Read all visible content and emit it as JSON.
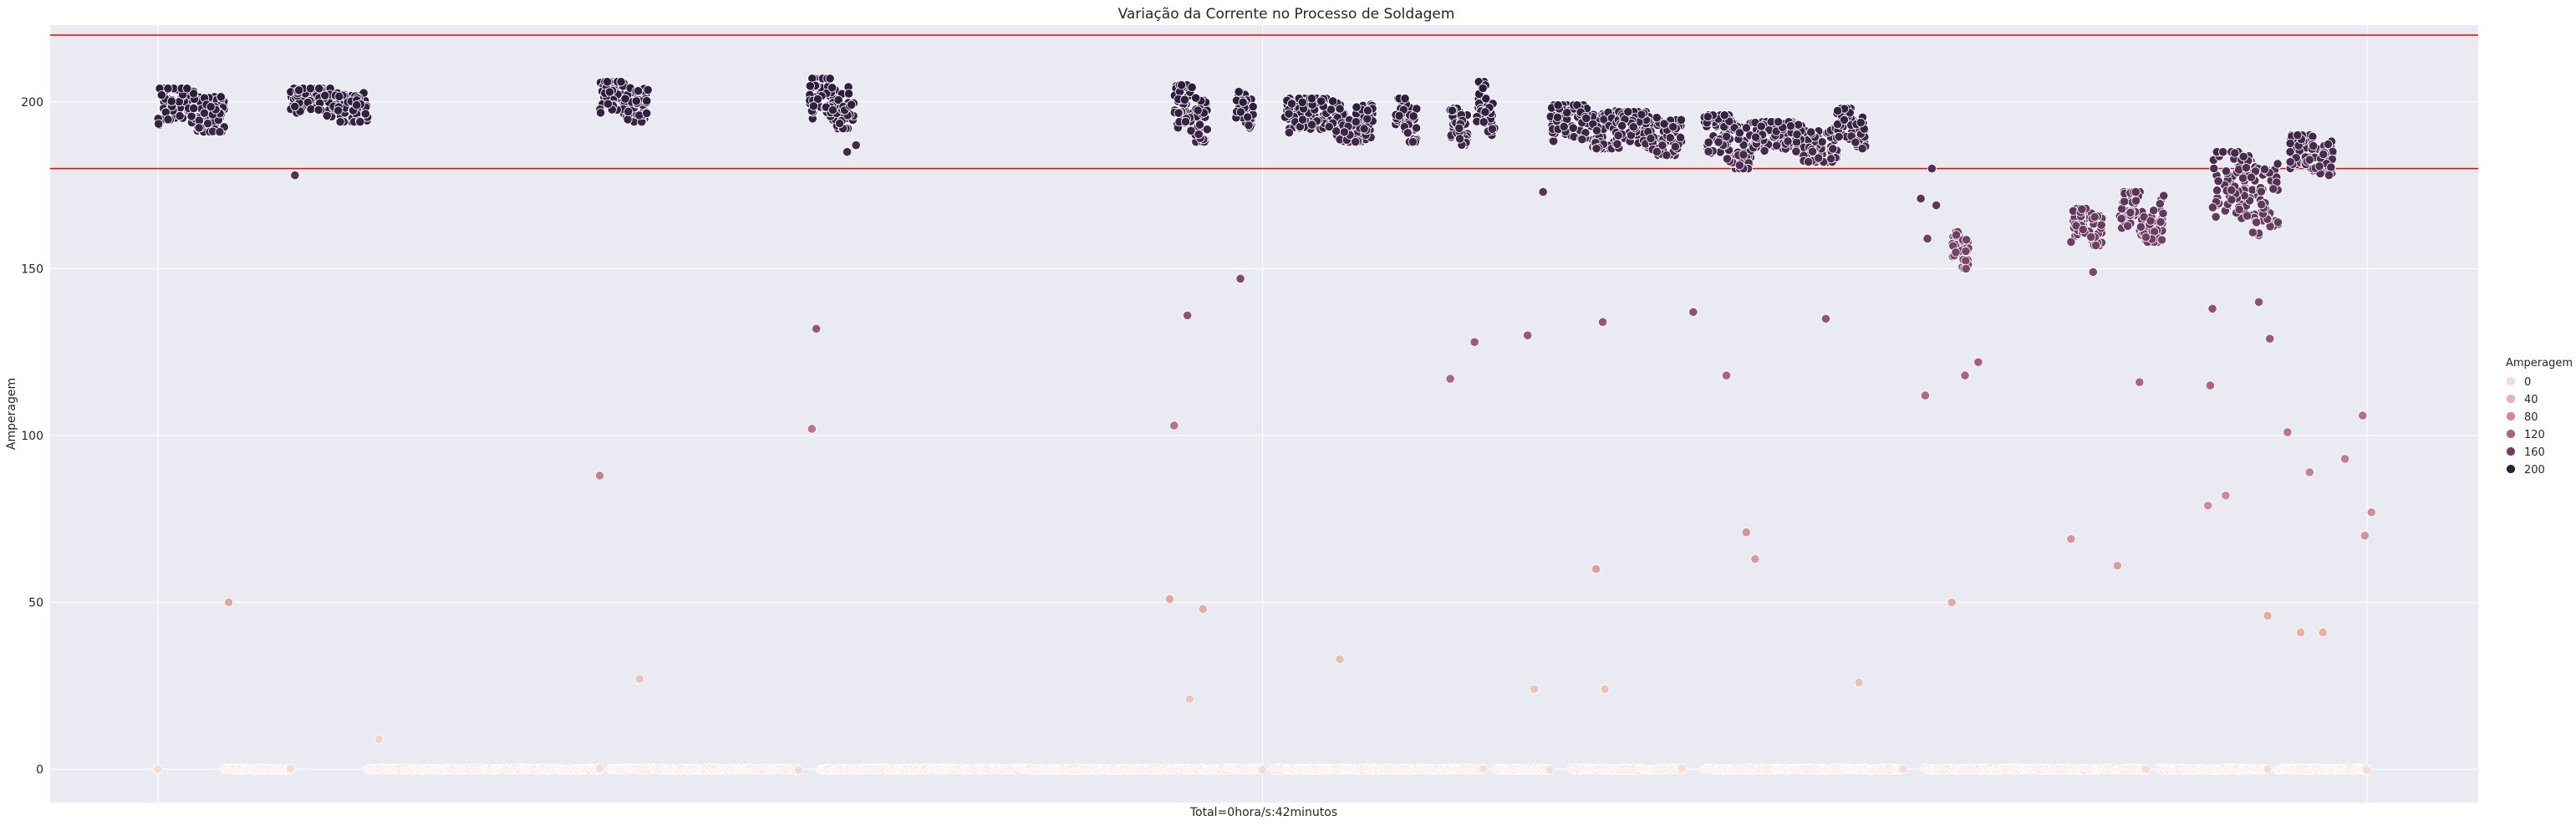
{
  "chart_data": {
    "type": "scatter",
    "title": "Variação da Corrente no Processo de Soldagem",
    "xlabel": "Total=0hora/s:42minutos",
    "ylabel": "Amperagem",
    "x_range": [
      0,
      1000
    ],
    "ylim": [
      -10,
      223
    ],
    "y_ticks": [
      0,
      50,
      100,
      150,
      200
    ],
    "grid": true,
    "legend_position": "right",
    "legend": {
      "title": "Amperagem",
      "entries": [
        {
          "label": "0",
          "value": 0
        },
        {
          "label": "40",
          "value": 40
        },
        {
          "label": "80",
          "value": 80
        },
        {
          "label": "120",
          "value": 120
        },
        {
          "label": "160",
          "value": 160
        },
        {
          "label": "200",
          "value": 200
        }
      ]
    },
    "reference_lines": [
      {
        "y": 220,
        "color": "#ff0000"
      },
      {
        "y": 180,
        "color": "#ff0000"
      }
    ],
    "zero_runs": [
      [
        0,
        0
      ],
      [
        30,
        60
      ],
      [
        95,
        200
      ],
      [
        205,
        290
      ],
      [
        300,
        500
      ],
      [
        505,
        600
      ],
      [
        606,
        630
      ],
      [
        640,
        690
      ],
      [
        700,
        790
      ],
      [
        800,
        900
      ],
      [
        906,
        955
      ],
      [
        960,
        1000
      ]
    ],
    "clusters": [
      {
        "x": [
          0,
          30
        ],
        "y": [
          191,
          204
        ]
      },
      {
        "x": [
          60,
          95
        ],
        "y": [
          194,
          204
        ]
      },
      {
        "x": [
          200,
          222
        ],
        "y": [
          194,
          206
        ]
      },
      {
        "x": [
          295,
          315
        ],
        "y": [
          192,
          207
        ]
      },
      {
        "x": [
          460,
          475
        ],
        "y": [
          188,
          205
        ]
      },
      {
        "x": [
          488,
          496
        ],
        "y": [
          192,
          203
        ]
      },
      {
        "x": [
          510,
          550
        ],
        "y": [
          188,
          201
        ]
      },
      {
        "x": [
          560,
          570
        ],
        "y": [
          188,
          201
        ]
      },
      {
        "x": [
          585,
          593
        ],
        "y": [
          187,
          198
        ]
      },
      {
        "x": [
          597,
          605
        ],
        "y": [
          190,
          206
        ]
      },
      {
        "x": [
          630,
          660
        ],
        "y": [
          186,
          199
        ]
      },
      {
        "x": [
          660,
          690
        ],
        "y": [
          184,
          197
        ]
      },
      {
        "x": [
          700,
          722
        ],
        "y": [
          180,
          196
        ]
      },
      {
        "x": [
          722,
          760
        ],
        "y": [
          182,
          194
        ]
      },
      {
        "x": [
          760,
          773
        ],
        "y": [
          186,
          198
        ]
      },
      {
        "x": [
          812,
          820
        ],
        "y": [
          150,
          161
        ]
      },
      {
        "x": [
          867,
          880
        ],
        "y": [
          157,
          168
        ]
      },
      {
        "x": [
          888,
          908
        ],
        "y": [
          158,
          173
        ]
      },
      {
        "x": [
          930,
          960
        ],
        "y": [
          160,
          185
        ]
      },
      {
        "x": [
          965,
          985
        ],
        "y": [
          178,
          190
        ]
      }
    ],
    "points": [
      {
        "x": 0,
        "y": 0
      },
      {
        "x": 32,
        "y": 50
      },
      {
        "x": 62,
        "y": 178
      },
      {
        "x": 100,
        "y": 9
      },
      {
        "x": 200,
        "y": 88
      },
      {
        "x": 218,
        "y": 27
      },
      {
        "x": 296,
        "y": 102
      },
      {
        "x": 298,
        "y": 132
      },
      {
        "x": 312,
        "y": 185
      },
      {
        "x": 316,
        "y": 187
      },
      {
        "x": 460,
        "y": 103
      },
      {
        "x": 458,
        "y": 51
      },
      {
        "x": 466,
        "y": 136
      },
      {
        "x": 467,
        "y": 21
      },
      {
        "x": 473,
        "y": 48
      },
      {
        "x": 490,
        "y": 147
      },
      {
        "x": 535,
        "y": 33
      },
      {
        "x": 585,
        "y": 117
      },
      {
        "x": 596,
        "y": 128
      },
      {
        "x": 620,
        "y": 130
      },
      {
        "x": 623,
        "y": 24
      },
      {
        "x": 627,
        "y": 173
      },
      {
        "x": 651,
        "y": 60
      },
      {
        "x": 654,
        "y": 134
      },
      {
        "x": 655,
        "y": 24
      },
      {
        "x": 695,
        "y": 137
      },
      {
        "x": 710,
        "y": 118
      },
      {
        "x": 716,
        "y": 181
      },
      {
        "x": 719,
        "y": 71
      },
      {
        "x": 723,
        "y": 63
      },
      {
        "x": 755,
        "y": 135
      },
      {
        "x": 770,
        "y": 26
      },
      {
        "x": 798,
        "y": 171
      },
      {
        "x": 800,
        "y": 112
      },
      {
        "x": 801,
        "y": 159
      },
      {
        "x": 803,
        "y": 180
      },
      {
        "x": 805,
        "y": 169
      },
      {
        "x": 812,
        "y": 50
      },
      {
        "x": 818,
        "y": 118
      },
      {
        "x": 824,
        "y": 122
      },
      {
        "x": 866,
        "y": 158
      },
      {
        "x": 866,
        "y": 69
      },
      {
        "x": 876,
        "y": 149
      },
      {
        "x": 887,
        "y": 61
      },
      {
        "x": 897,
        "y": 116
      },
      {
        "x": 928,
        "y": 79
      },
      {
        "x": 929,
        "y": 115
      },
      {
        "x": 930,
        "y": 138
      },
      {
        "x": 936,
        "y": 82
      },
      {
        "x": 951,
        "y": 140
      },
      {
        "x": 955,
        "y": 46
      },
      {
        "x": 956,
        "y": 129
      },
      {
        "x": 964,
        "y": 101
      },
      {
        "x": 970,
        "y": 41
      },
      {
        "x": 974,
        "y": 89
      },
      {
        "x": 980,
        "y": 41
      },
      {
        "x": 990,
        "y": 93
      },
      {
        "x": 998,
        "y": 106
      },
      {
        "x": 999,
        "y": 70
      },
      {
        "x": 1002,
        "y": 77
      }
    ],
    "color_scale": [
      "#f4dcd3",
      "#e7b3a9",
      "#cf8a94",
      "#a8617f",
      "#6f3e66",
      "#2d1e3e"
    ]
  }
}
